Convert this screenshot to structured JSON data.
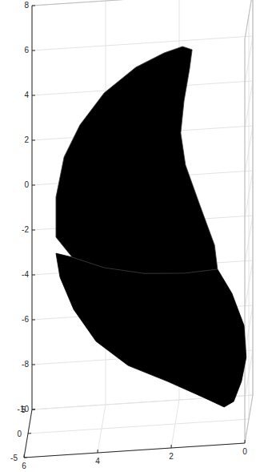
{
  "chart_data": {
    "type": "surface",
    "xlim": [
      0,
      6
    ],
    "ylim": [
      -5,
      5
    ],
    "zlim": [
      -10,
      8
    ],
    "xticks": [
      0,
      2,
      4,
      6
    ],
    "yticks": [
      -5,
      0,
      5
    ],
    "zticks": [
      -10,
      -8,
      -6,
      -4,
      -2,
      0,
      2,
      4,
      6,
      8
    ],
    "grid": true,
    "color": "#000000",
    "patches": [
      {
        "x": [
          4.8,
          3.93,
          2.85,
          1.76,
          0.85,
          0.46,
          0.13,
          0.07,
          0.2,
          0.41,
          0.67,
          1.22,
          2.2,
          3.28,
          4.15,
          4.76,
          5.13,
          5.24
        ],
        "y": [
          0,
          0,
          0,
          0,
          0,
          0,
          0,
          0,
          0,
          0,
          0,
          0,
          0,
          0,
          0,
          0,
          0,
          0
        ],
        "z": [
          -2.27,
          -2.83,
          -3.2,
          -3.31,
          -3.23,
          -4.34,
          -5.81,
          -7.24,
          -8.3,
          -9.17,
          -9.39,
          -8.91,
          -8.09,
          -7.26,
          -6.09,
          -4.6,
          -3.13,
          -2.05
        ]
      },
      {
        "x": [
          1.8,
          1.54,
          1.61,
          1.76,
          1.85,
          1.72,
          1.33,
          0.93,
          0.85,
          1.76,
          2.85,
          3.93,
          4.8,
          5.24,
          5.24,
          5.02,
          4.59,
          3.93,
          3.07,
          2.3
        ],
        "y": [
          0,
          0,
          0,
          0,
          0,
          0,
          0,
          0,
          0,
          0,
          0,
          0,
          0,
          0,
          0,
          0,
          0,
          0,
          0,
          0
        ],
        "z": [
          6.8,
          6.63,
          5.78,
          4.37,
          2.95,
          1.51,
          -0.32,
          -2.15,
          -3.23,
          -3.31,
          -3.2,
          -2.83,
          -2.27,
          -1.33,
          0.45,
          2.22,
          3.6,
          4.96,
          6.01,
          6.57
        ]
      }
    ]
  }
}
